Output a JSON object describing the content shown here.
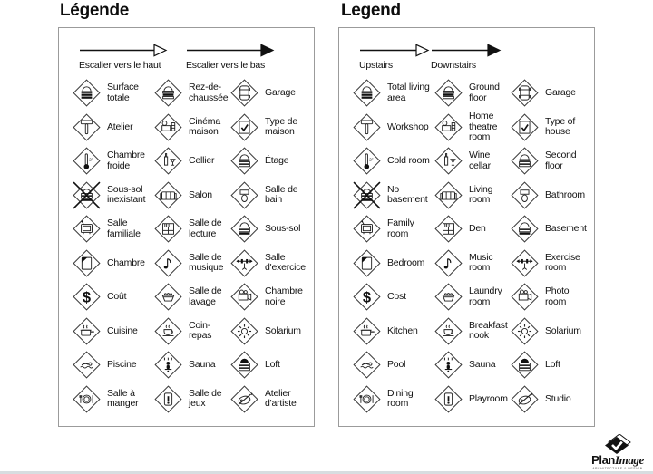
{
  "panels": [
    {
      "id": "fr",
      "title": "Légende",
      "arrows": [
        {
          "label": "Escalier vers le haut",
          "style": "open"
        },
        {
          "label": "Escalier vers le bas",
          "style": "solid"
        }
      ],
      "items": [
        {
          "icon": "building-total",
          "label": "Surface totale"
        },
        {
          "icon": "building-ground",
          "label": "Rez-de-chaussée"
        },
        {
          "icon": "garage-car",
          "label": "Garage"
        },
        {
          "icon": "hammer",
          "label": "Atelier"
        },
        {
          "icon": "projector",
          "label": "Cinéma maison"
        },
        {
          "icon": "house-check",
          "label": "Type de maison"
        },
        {
          "icon": "thermometer",
          "label": "Chambre froide"
        },
        {
          "icon": "wine-bottle",
          "label": "Cellier"
        },
        {
          "icon": "building-second",
          "label": "Étage"
        },
        {
          "icon": "no-basement",
          "label": "Sous-sol inexistant"
        },
        {
          "icon": "sofa",
          "label": "Salon"
        },
        {
          "icon": "toilet",
          "label": "Salle de bain"
        },
        {
          "icon": "tv",
          "label": "Salle familiale"
        },
        {
          "icon": "bookshelf",
          "label": "Salle de lecture"
        },
        {
          "icon": "building-basement",
          "label": "Sous-sol"
        },
        {
          "icon": "bed",
          "label": "Chambre"
        },
        {
          "icon": "music-note",
          "label": "Salle de musique"
        },
        {
          "icon": "barbell",
          "label": "Salle d'exercice"
        },
        {
          "icon": "dollar",
          "label": "Coût"
        },
        {
          "icon": "laundry-tub",
          "label": "Salle de lavage"
        },
        {
          "icon": "camera",
          "label": "Chambre noire"
        },
        {
          "icon": "cooking-pot",
          "label": "Cuisine"
        },
        {
          "icon": "coffee-cup",
          "label": "Coin-repas"
        },
        {
          "icon": "sun",
          "label": "Solarium"
        },
        {
          "icon": "swimmer",
          "label": "Piscine"
        },
        {
          "icon": "sauna-person",
          "label": "Sauna"
        },
        {
          "icon": "building-loft",
          "label": "Loft"
        },
        {
          "icon": "dinner-plate",
          "label": "Salle à manger"
        },
        {
          "icon": "play-figure",
          "label": "Salle de jeux"
        },
        {
          "icon": "palette",
          "label": "Atelier d'artiste"
        }
      ]
    },
    {
      "id": "en",
      "title": "Legend",
      "arrows": [
        {
          "label": "Upstairs",
          "style": "open"
        },
        {
          "label": "Downstairs",
          "style": "solid"
        }
      ],
      "items": [
        {
          "icon": "building-total",
          "label": "Total living area"
        },
        {
          "icon": "building-ground",
          "label": "Ground floor"
        },
        {
          "icon": "garage-car",
          "label": "Garage"
        },
        {
          "icon": "hammer",
          "label": "Workshop"
        },
        {
          "icon": "projector",
          "label": "Home theatre room"
        },
        {
          "icon": "house-check",
          "label": "Type of house"
        },
        {
          "icon": "thermometer",
          "label": "Cold room"
        },
        {
          "icon": "wine-bottle",
          "label": "Wine cellar"
        },
        {
          "icon": "building-second",
          "label": "Second floor"
        },
        {
          "icon": "no-basement",
          "label": "No basement"
        },
        {
          "icon": "sofa",
          "label": "Living room"
        },
        {
          "icon": "toilet",
          "label": "Bathroom"
        },
        {
          "icon": "tv",
          "label": "Family room"
        },
        {
          "icon": "bookshelf",
          "label": "Den"
        },
        {
          "icon": "building-basement",
          "label": "Basement"
        },
        {
          "icon": "bed",
          "label": "Bedroom"
        },
        {
          "icon": "music-note",
          "label": "Music room"
        },
        {
          "icon": "barbell",
          "label": "Exercise room"
        },
        {
          "icon": "dollar",
          "label": "Cost"
        },
        {
          "icon": "laundry-tub",
          "label": "Laundry room"
        },
        {
          "icon": "camera",
          "label": "Photo room"
        },
        {
          "icon": "cooking-pot",
          "label": "Kitchen"
        },
        {
          "icon": "coffee-cup",
          "label": "Breakfast nook"
        },
        {
          "icon": "sun",
          "label": "Solarium"
        },
        {
          "icon": "swimmer",
          "label": "Pool"
        },
        {
          "icon": "sauna-person",
          "label": "Sauna"
        },
        {
          "icon": "building-loft",
          "label": "Loft"
        },
        {
          "icon": "dinner-plate",
          "label": "Dining room"
        },
        {
          "icon": "play-figure",
          "label": "Playroom"
        },
        {
          "icon": "palette",
          "label": "Studio"
        }
      ]
    }
  ],
  "logo": {
    "brand_plan": "Plan",
    "brand_image": "Image",
    "tagline": "ARCHITECTURE & DESIGN"
  },
  "colors": {
    "ink": "#111111",
    "panel_border": "#9b9b9b",
    "page_edge": "#d8dde0"
  }
}
